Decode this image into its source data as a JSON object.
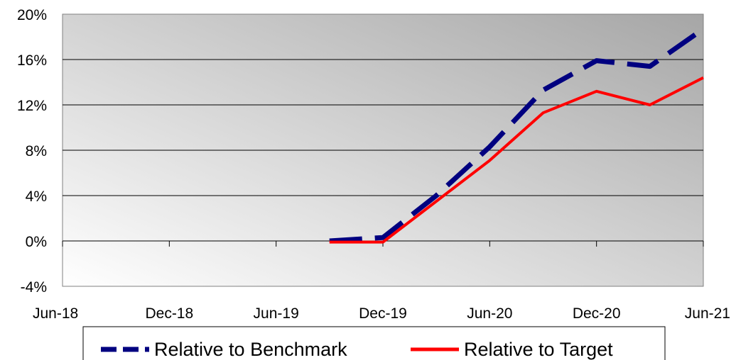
{
  "chart_data": {
    "type": "line",
    "x_ticks": [
      "Jun-18",
      "Dec-18",
      "Jun-19",
      "Dec-19",
      "Jun-20",
      "Dec-20",
      "Jun-21"
    ],
    "y_ticks": [
      "20%",
      "16%",
      "12%",
      "8%",
      "4%",
      "0%",
      "-4%"
    ],
    "y_tick_values": [
      20,
      16,
      12,
      8,
      4,
      0,
      -4
    ],
    "ylim": [
      -4,
      20
    ],
    "x_range": [
      "Jun-18",
      "Jun-21"
    ],
    "grid": "horizontal",
    "legend_position": "bottom",
    "series": [
      {
        "name": "Relative to Benchmark",
        "color": "#000080",
        "style": "dashed",
        "x": [
          "Sep-19",
          "Dec-19",
          "Mar-20",
          "Jun-20",
          "Sep-20",
          "Dec-20",
          "Mar-21",
          "Jun-21"
        ],
        "values": [
          0.0,
          0.3,
          4.0,
          8.3,
          13.3,
          15.9,
          15.4,
          18.7
        ]
      },
      {
        "name": "Relative to Target",
        "color": "#ff0000",
        "style": "solid",
        "x": [
          "Sep-19",
          "Dec-19",
          "Mar-20",
          "Jun-20",
          "Sep-20",
          "Dec-20",
          "Mar-21",
          "Jun-21"
        ],
        "values": [
          -0.1,
          -0.1,
          3.5,
          7.1,
          11.3,
          13.2,
          12.0,
          14.4
        ]
      }
    ]
  }
}
